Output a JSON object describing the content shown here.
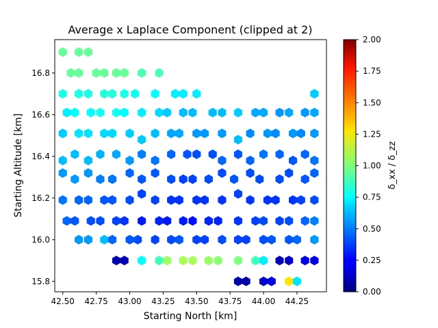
{
  "chart_data": {
    "type": "heatmap",
    "subtype": "hexbin",
    "title": "Average x Laplace Component (clipped at 2)",
    "xlabel": "Starting North [km]",
    "ylabel": "Starting Altitude [km]",
    "colorbar_label": "δ_xx / δ_zz",
    "colormap": "jet",
    "clim": [
      0,
      2
    ],
    "xlim": [
      42.44,
      44.47
    ],
    "ylim": [
      15.75,
      16.96
    ],
    "xticks": [
      "42.50",
      "42.75",
      "43.00",
      "43.25",
      "43.50",
      "43.75",
      "44.00",
      "44.25"
    ],
    "yticks": [
      "15.8",
      "16.0",
      "16.2",
      "16.4",
      "16.6",
      "16.8"
    ],
    "colorbar_ticks": [
      "0.00",
      "0.25",
      "0.50",
      "0.75",
      "1.00",
      "1.25",
      "1.50",
      "1.75",
      "2.00"
    ],
    "grid": false,
    "legend": "none",
    "points": [
      {
        "x": 42.5,
        "y": 16.9,
        "v": 0.95
      },
      {
        "x": 42.62,
        "y": 16.9,
        "v": 0.95
      },
      {
        "x": 42.69,
        "y": 16.9,
        "v": 0.95
      },
      {
        "x": 42.56,
        "y": 16.8,
        "v": 0.95
      },
      {
        "x": 42.62,
        "y": 16.8,
        "v": 0.95
      },
      {
        "x": 42.75,
        "y": 16.8,
        "v": 0.95
      },
      {
        "x": 42.81,
        "y": 16.8,
        "v": 0.95
      },
      {
        "x": 42.9,
        "y": 16.8,
        "v": 0.95
      },
      {
        "x": 42.96,
        "y": 16.8,
        "v": 0.95
      },
      {
        "x": 43.09,
        "y": 16.8,
        "v": 0.9
      },
      {
        "x": 43.22,
        "y": 16.8,
        "v": 0.9
      },
      {
        "x": 42.5,
        "y": 16.7,
        "v": 0.8
      },
      {
        "x": 42.62,
        "y": 16.7,
        "v": 0.8
      },
      {
        "x": 42.69,
        "y": 16.7,
        "v": 0.8
      },
      {
        "x": 42.81,
        "y": 16.7,
        "v": 0.82
      },
      {
        "x": 42.87,
        "y": 16.7,
        "v": 0.82
      },
      {
        "x": 42.96,
        "y": 16.7,
        "v": 0.8
      },
      {
        "x": 43.04,
        "y": 16.7,
        "v": 0.78
      },
      {
        "x": 43.19,
        "y": 16.7,
        "v": 0.75
      },
      {
        "x": 43.34,
        "y": 16.7,
        "v": 0.72
      },
      {
        "x": 43.4,
        "y": 16.7,
        "v": 0.72
      },
      {
        "x": 43.5,
        "y": 16.7,
        "v": 0.72
      },
      {
        "x": 44.38,
        "y": 16.7,
        "v": 0.65
      },
      {
        "x": 42.53,
        "y": 16.61,
        "v": 0.72
      },
      {
        "x": 42.59,
        "y": 16.61,
        "v": 0.75
      },
      {
        "x": 42.71,
        "y": 16.61,
        "v": 0.75
      },
      {
        "x": 42.78,
        "y": 16.61,
        "v": 0.78
      },
      {
        "x": 42.9,
        "y": 16.61,
        "v": 0.78
      },
      {
        "x": 42.96,
        "y": 16.61,
        "v": 0.75
      },
      {
        "x": 43.09,
        "y": 16.61,
        "v": 0.72
      },
      {
        "x": 43.22,
        "y": 16.61,
        "v": 0.68
      },
      {
        "x": 43.28,
        "y": 16.61,
        "v": 0.65
      },
      {
        "x": 43.4,
        "y": 16.61,
        "v": 0.62
      },
      {
        "x": 43.47,
        "y": 16.61,
        "v": 0.62
      },
      {
        "x": 43.62,
        "y": 16.61,
        "v": 0.62
      },
      {
        "x": 43.69,
        "y": 16.61,
        "v": 0.62
      },
      {
        "x": 43.81,
        "y": 16.61,
        "v": 0.65
      },
      {
        "x": 43.94,
        "y": 16.61,
        "v": 0.58
      },
      {
        "x": 44.0,
        "y": 16.61,
        "v": 0.58
      },
      {
        "x": 44.12,
        "y": 16.61,
        "v": 0.55
      },
      {
        "x": 44.19,
        "y": 16.61,
        "v": 0.58
      },
      {
        "x": 44.31,
        "y": 16.61,
        "v": 0.55
      },
      {
        "x": 44.38,
        "y": 16.61,
        "v": 0.58
      },
      {
        "x": 42.5,
        "y": 16.51,
        "v": 0.65
      },
      {
        "x": 42.62,
        "y": 16.51,
        "v": 0.7
      },
      {
        "x": 42.69,
        "y": 16.51,
        "v": 0.7
      },
      {
        "x": 42.81,
        "y": 16.51,
        "v": 0.68
      },
      {
        "x": 42.87,
        "y": 16.51,
        "v": 0.68
      },
      {
        "x": 43.0,
        "y": 16.51,
        "v": 0.65
      },
      {
        "x": 43.09,
        "y": 16.48,
        "v": 0.65
      },
      {
        "x": 43.19,
        "y": 16.51,
        "v": 0.62
      },
      {
        "x": 43.31,
        "y": 16.51,
        "v": 0.58
      },
      {
        "x": 43.37,
        "y": 16.51,
        "v": 0.58
      },
      {
        "x": 43.5,
        "y": 16.51,
        "v": 0.55
      },
      {
        "x": 43.56,
        "y": 16.51,
        "v": 0.55
      },
      {
        "x": 43.69,
        "y": 16.51,
        "v": 0.55
      },
      {
        "x": 43.81,
        "y": 16.48,
        "v": 0.62
      },
      {
        "x": 43.9,
        "y": 16.51,
        "v": 0.52
      },
      {
        "x": 44.03,
        "y": 16.51,
        "v": 0.55
      },
      {
        "x": 44.09,
        "y": 16.51,
        "v": 0.52
      },
      {
        "x": 44.22,
        "y": 16.51,
        "v": 0.55
      },
      {
        "x": 44.28,
        "y": 16.51,
        "v": 0.52
      },
      {
        "x": 44.38,
        "y": 16.51,
        "v": 0.55
      },
      {
        "x": 42.5,
        "y": 16.38,
        "v": 0.62
      },
      {
        "x": 42.59,
        "y": 16.41,
        "v": 0.62
      },
      {
        "x": 42.69,
        "y": 16.38,
        "v": 0.62
      },
      {
        "x": 42.78,
        "y": 16.41,
        "v": 0.6
      },
      {
        "x": 42.9,
        "y": 16.41,
        "v": 0.58
      },
      {
        "x": 43.0,
        "y": 16.38,
        "v": 0.55
      },
      {
        "x": 43.09,
        "y": 16.41,
        "v": 0.5
      },
      {
        "x": 43.19,
        "y": 16.38,
        "v": 0.48
      },
      {
        "x": 43.31,
        "y": 16.41,
        "v": 0.45
      },
      {
        "x": 43.43,
        "y": 16.41,
        "v": 0.42
      },
      {
        "x": 43.5,
        "y": 16.41,
        "v": 0.4
      },
      {
        "x": 43.62,
        "y": 16.41,
        "v": 0.4
      },
      {
        "x": 43.69,
        "y": 16.38,
        "v": 0.45
      },
      {
        "x": 43.81,
        "y": 16.41,
        "v": 0.42
      },
      {
        "x": 43.9,
        "y": 16.38,
        "v": 0.45
      },
      {
        "x": 44.0,
        "y": 16.41,
        "v": 0.48
      },
      {
        "x": 44.12,
        "y": 16.41,
        "v": 0.45
      },
      {
        "x": 44.22,
        "y": 16.38,
        "v": 0.42
      },
      {
        "x": 44.31,
        "y": 16.41,
        "v": 0.45
      },
      {
        "x": 44.38,
        "y": 16.38,
        "v": 0.48
      },
      {
        "x": 42.5,
        "y": 16.32,
        "v": 0.55
      },
      {
        "x": 42.59,
        "y": 16.29,
        "v": 0.55
      },
      {
        "x": 42.69,
        "y": 16.32,
        "v": 0.55
      },
      {
        "x": 42.78,
        "y": 16.29,
        "v": 0.5
      },
      {
        "x": 42.87,
        "y": 16.29,
        "v": 0.48
      },
      {
        "x": 43.0,
        "y": 16.32,
        "v": 0.45
      },
      {
        "x": 43.09,
        "y": 16.29,
        "v": 0.42
      },
      {
        "x": 43.19,
        "y": 16.32,
        "v": 0.42
      },
      {
        "x": 43.31,
        "y": 16.29,
        "v": 0.4
      },
      {
        "x": 43.4,
        "y": 16.29,
        "v": 0.38
      },
      {
        "x": 43.47,
        "y": 16.29,
        "v": 0.38
      },
      {
        "x": 43.59,
        "y": 16.29,
        "v": 0.4
      },
      {
        "x": 43.69,
        "y": 16.32,
        "v": 0.4
      },
      {
        "x": 43.78,
        "y": 16.29,
        "v": 0.42
      },
      {
        "x": 43.9,
        "y": 16.32,
        "v": 0.4
      },
      {
        "x": 43.97,
        "y": 16.29,
        "v": 0.4
      },
      {
        "x": 44.12,
        "y": 16.29,
        "v": 0.4
      },
      {
        "x": 44.19,
        "y": 16.32,
        "v": 0.4
      },
      {
        "x": 44.31,
        "y": 16.29,
        "v": 0.42
      },
      {
        "x": 44.38,
        "y": 16.32,
        "v": 0.45
      },
      {
        "x": 42.5,
        "y": 16.19,
        "v": 0.48
      },
      {
        "x": 42.62,
        "y": 16.19,
        "v": 0.45
      },
      {
        "x": 42.69,
        "y": 16.19,
        "v": 0.45
      },
      {
        "x": 42.81,
        "y": 16.19,
        "v": 0.42
      },
      {
        "x": 42.87,
        "y": 16.19,
        "v": 0.42
      },
      {
        "x": 43.0,
        "y": 16.19,
        "v": 0.4
      },
      {
        "x": 43.09,
        "y": 16.22,
        "v": 0.38
      },
      {
        "x": 43.19,
        "y": 16.19,
        "v": 0.38
      },
      {
        "x": 43.31,
        "y": 16.19,
        "v": 0.35
      },
      {
        "x": 43.37,
        "y": 16.19,
        "v": 0.35
      },
      {
        "x": 43.5,
        "y": 16.19,
        "v": 0.35
      },
      {
        "x": 43.56,
        "y": 16.19,
        "v": 0.35
      },
      {
        "x": 43.69,
        "y": 16.19,
        "v": 0.35
      },
      {
        "x": 43.81,
        "y": 16.22,
        "v": 0.38
      },
      {
        "x": 43.9,
        "y": 16.19,
        "v": 0.35
      },
      {
        "x": 44.03,
        "y": 16.19,
        "v": 0.35
      },
      {
        "x": 44.09,
        "y": 16.19,
        "v": 0.35
      },
      {
        "x": 44.22,
        "y": 16.19,
        "v": 0.35
      },
      {
        "x": 44.28,
        "y": 16.19,
        "v": 0.38
      },
      {
        "x": 44.38,
        "y": 16.19,
        "v": 0.4
      },
      {
        "x": 42.53,
        "y": 16.09,
        "v": 0.45
      },
      {
        "x": 42.59,
        "y": 16.09,
        "v": 0.42
      },
      {
        "x": 42.71,
        "y": 16.09,
        "v": 0.4
      },
      {
        "x": 42.78,
        "y": 16.09,
        "v": 0.4
      },
      {
        "x": 42.9,
        "y": 16.09,
        "v": 0.38
      },
      {
        "x": 42.96,
        "y": 16.09,
        "v": 0.35
      },
      {
        "x": 43.09,
        "y": 16.09,
        "v": 0.3
      },
      {
        "x": 43.22,
        "y": 16.09,
        "v": 0.32
      },
      {
        "x": 43.28,
        "y": 16.09,
        "v": 0.3
      },
      {
        "x": 43.4,
        "y": 16.09,
        "v": 0.3
      },
      {
        "x": 43.47,
        "y": 16.09,
        "v": 0.28
      },
      {
        "x": 43.59,
        "y": 16.09,
        "v": 0.32
      },
      {
        "x": 43.66,
        "y": 16.09,
        "v": 0.32
      },
      {
        "x": 43.81,
        "y": 16.09,
        "v": 0.35
      },
      {
        "x": 43.94,
        "y": 16.09,
        "v": 0.38
      },
      {
        "x": 44.0,
        "y": 16.09,
        "v": 0.4
      },
      {
        "x": 44.12,
        "y": 16.09,
        "v": 0.38
      },
      {
        "x": 44.19,
        "y": 16.09,
        "v": 0.4
      },
      {
        "x": 44.31,
        "y": 16.09,
        "v": 0.45
      },
      {
        "x": 44.38,
        "y": 16.09,
        "v": 0.5
      },
      {
        "x": 42.62,
        "y": 16.0,
        "v": 0.55
      },
      {
        "x": 42.69,
        "y": 16.0,
        "v": 0.55
      },
      {
        "x": 42.81,
        "y": 16.0,
        "v": 0.62
      },
      {
        "x": 42.87,
        "y": 16.0,
        "v": 0.45
      },
      {
        "x": 43.0,
        "y": 16.0,
        "v": 0.42
      },
      {
        "x": 43.06,
        "y": 16.0,
        "v": 0.4
      },
      {
        "x": 43.19,
        "y": 16.0,
        "v": 0.38
      },
      {
        "x": 43.31,
        "y": 16.0,
        "v": 0.4
      },
      {
        "x": 43.37,
        "y": 16.0,
        "v": 0.42
      },
      {
        "x": 43.5,
        "y": 16.0,
        "v": 0.38
      },
      {
        "x": 43.56,
        "y": 16.0,
        "v": 0.38
      },
      {
        "x": 43.69,
        "y": 16.0,
        "v": 0.4
      },
      {
        "x": 43.81,
        "y": 16.0,
        "v": 0.38
      },
      {
        "x": 43.87,
        "y": 16.0,
        "v": 0.38
      },
      {
        "x": 44.0,
        "y": 16.0,
        "v": 0.4
      },
      {
        "x": 44.06,
        "y": 16.0,
        "v": 0.42
      },
      {
        "x": 44.19,
        "y": 16.0,
        "v": 0.42
      },
      {
        "x": 44.25,
        "y": 16.0,
        "v": 0.45
      },
      {
        "x": 44.38,
        "y": 16.0,
        "v": 0.55
      },
      {
        "x": 42.9,
        "y": 15.9,
        "v": 0.1
      },
      {
        "x": 42.96,
        "y": 15.9,
        "v": 0.1
      },
      {
        "x": 43.09,
        "y": 15.9,
        "v": 0.75
      },
      {
        "x": 43.22,
        "y": 15.9,
        "v": 0.88
      },
      {
        "x": 43.28,
        "y": 15.9,
        "v": 1.05
      },
      {
        "x": 43.4,
        "y": 15.9,
        "v": 1.08
      },
      {
        "x": 43.47,
        "y": 15.9,
        "v": 1.08
      },
      {
        "x": 43.59,
        "y": 15.9,
        "v": 1.05
      },
      {
        "x": 43.66,
        "y": 15.9,
        "v": 1.02
      },
      {
        "x": 43.81,
        "y": 15.9,
        "v": 1.0
      },
      {
        "x": 43.94,
        "y": 15.9,
        "v": 0.88
      },
      {
        "x": 44.0,
        "y": 15.9,
        "v": 0.72
      },
      {
        "x": 44.12,
        "y": 15.9,
        "v": 0.12
      },
      {
        "x": 44.19,
        "y": 15.9,
        "v": 0.15
      },
      {
        "x": 44.31,
        "y": 15.9,
        "v": 0.2
      },
      {
        "x": 44.38,
        "y": 15.9,
        "v": 0.2
      },
      {
        "x": 43.81,
        "y": 15.8,
        "v": 0.08
      },
      {
        "x": 43.87,
        "y": 15.8,
        "v": 0.08
      },
      {
        "x": 44.0,
        "y": 15.8,
        "v": 0.15
      },
      {
        "x": 44.06,
        "y": 15.8,
        "v": 0.2
      },
      {
        "x": 44.19,
        "y": 15.8,
        "v": 1.3
      },
      {
        "x": 44.25,
        "y": 15.8,
        "v": 0.7
      }
    ]
  }
}
